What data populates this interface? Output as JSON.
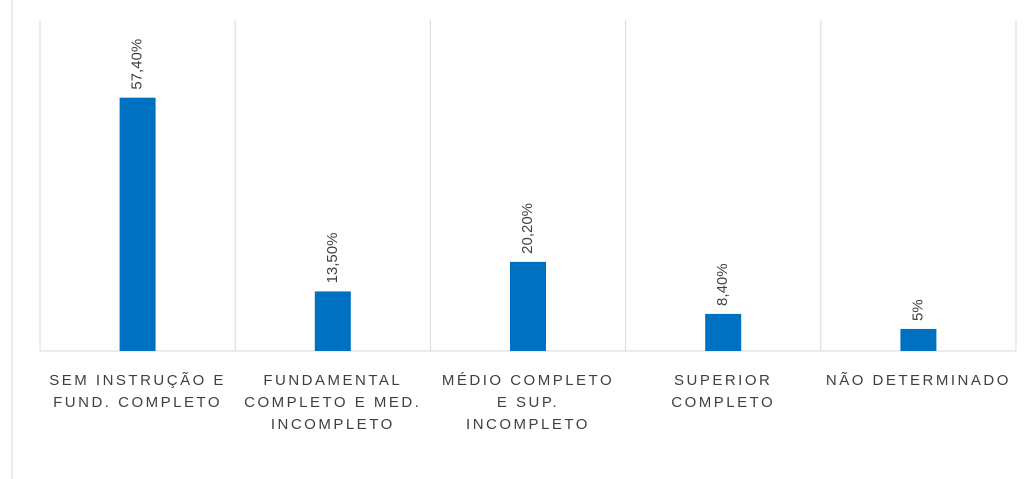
{
  "chart_data": {
    "type": "bar",
    "categories": [
      "SEM INSTRUÇÃO E FUND. COMPLETO",
      "FUNDAMENTAL COMPLETO E MED. INCOMPLETO",
      "MÉDIO COMPLETO E SUP. INCOMPLETO",
      "SUPERIOR COMPLETO",
      "NÃO DETERMINADO"
    ],
    "values": [
      57.4,
      13.5,
      20.2,
      8.4,
      5
    ],
    "value_labels": [
      "57,40%",
      "13,50%",
      "20,20%",
      "8,40%",
      "5%"
    ],
    "color": "#0070c0",
    "ylim": [
      0,
      75
    ]
  }
}
